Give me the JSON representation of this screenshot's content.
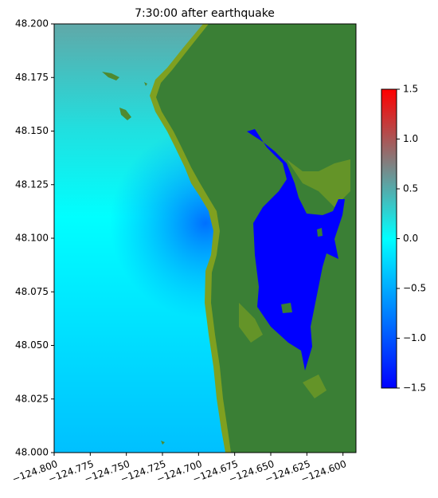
{
  "chart_data": {
    "type": "image",
    "title": "7:30:00 after earthquake",
    "xlim": [
      -124.8,
      -124.591
    ],
    "ylim": [
      48,
      48.2
    ],
    "xticks": [
      {
        "value": -124.8,
        "label": "−124.800"
      },
      {
        "value": -124.775,
        "label": "−124.775"
      },
      {
        "value": -124.75,
        "label": "−124.750"
      },
      {
        "value": -124.725,
        "label": "−124.725"
      },
      {
        "value": -124.7,
        "label": "−124.700"
      },
      {
        "value": -124.675,
        "label": "−124.675"
      },
      {
        "value": -124.65,
        "label": "−124.650"
      },
      {
        "value": -124.625,
        "label": "−124.625"
      },
      {
        "value": -124.6,
        "label": "−124.600"
      }
    ],
    "yticks": [
      {
        "value": 48,
        "label": "48.000"
      },
      48.025,
      {
        "value": 48.05,
        "label": "48.050"
      },
      48.075,
      {
        "value": 48.1,
        "label": "48.100"
      },
      48.125,
      {
        "value": 48.15,
        "label": "48.150"
      },
      48.175,
      {
        "value": 48.2,
        "label": "48.200"
      }
    ],
    "clim": [
      -1.5,
      1.5
    ],
    "cticks": [
      {
        "value": -1.5,
        "label": "−1.5"
      },
      {
        "value": -1,
        "label": "−1.0"
      },
      {
        "value": -0.5,
        "label": "−0.5"
      },
      {
        "value": 0,
        "label": "0.0"
      },
      0.5,
      {
        "value": 1,
        "label": "1.0"
      },
      1.5
    ],
    "colormap": [
      "#0000ff",
      "#0080ff",
      "#00ffff",
      "#808080",
      "#ff0000"
    ]
  }
}
